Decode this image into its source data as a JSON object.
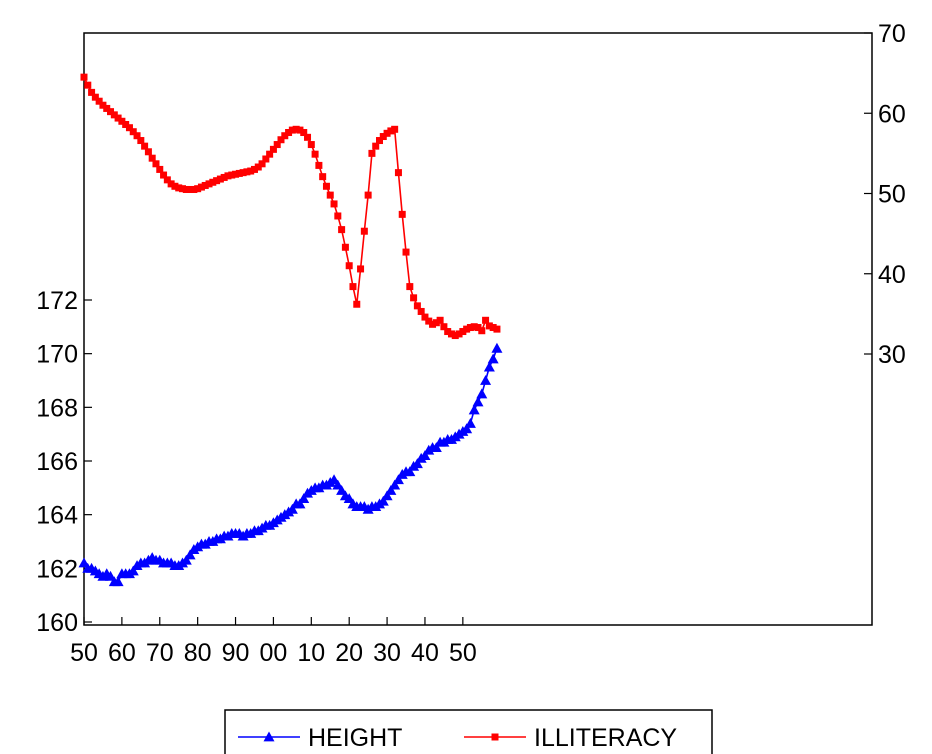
{
  "chart_data": {
    "type": "line",
    "x_range": [
      1850,
      2058
    ],
    "left_axis": {
      "ylim": [
        160,
        172
      ],
      "ticks": [
        160,
        162,
        164,
        166,
        168,
        170,
        172
      ]
    },
    "right_axis": {
      "ylim": [
        30,
        70
      ],
      "ticks": [
        30,
        40,
        50,
        60,
        70
      ]
    },
    "x_ticks": [
      {
        "value": 1850,
        "label": "50"
      },
      {
        "value": 1860,
        "label": "60"
      },
      {
        "value": 1870,
        "label": "70"
      },
      {
        "value": 1880,
        "label": "80"
      },
      {
        "value": 1890,
        "label": "90"
      },
      {
        "value": 1900,
        "label": "00"
      },
      {
        "value": 1910,
        "label": "10"
      },
      {
        "value": 1920,
        "label": "20"
      },
      {
        "value": 1930,
        "label": "30"
      },
      {
        "value": 1940,
        "label": "40"
      },
      {
        "value": 1950,
        "label": "50"
      }
    ],
    "grid": false,
    "legend_position": "bottom",
    "series": [
      {
        "name": "HEIGHT",
        "axis": "left",
        "color": "#0000ff",
        "marker": "triangle",
        "points": [
          [
            1850,
            162.2
          ],
          [
            1851,
            162.0
          ],
          [
            1852,
            162.0
          ],
          [
            1853,
            161.9
          ],
          [
            1854,
            161.8
          ],
          [
            1855,
            161.7
          ],
          [
            1856,
            161.8
          ],
          [
            1857,
            161.7
          ],
          [
            1858,
            161.5
          ],
          [
            1859,
            161.5
          ],
          [
            1860,
            161.8
          ],
          [
            1861,
            161.8
          ],
          [
            1862,
            161.8
          ],
          [
            1863,
            161.9
          ],
          [
            1864,
            162.1
          ],
          [
            1865,
            162.2
          ],
          [
            1866,
            162.2
          ],
          [
            1867,
            162.3
          ],
          [
            1868,
            162.4
          ],
          [
            1869,
            162.3
          ],
          [
            1870,
            162.3
          ],
          [
            1871,
            162.2
          ],
          [
            1872,
            162.2
          ],
          [
            1873,
            162.2
          ],
          [
            1874,
            162.1
          ],
          [
            1875,
            162.1
          ],
          [
            1876,
            162.2
          ],
          [
            1877,
            162.3
          ],
          [
            1878,
            162.5
          ],
          [
            1879,
            162.7
          ],
          [
            1880,
            162.8
          ],
          [
            1881,
            162.9
          ],
          [
            1882,
            162.9
          ],
          [
            1883,
            163.0
          ],
          [
            1884,
            163.0
          ],
          [
            1885,
            163.1
          ],
          [
            1886,
            163.1
          ],
          [
            1887,
            163.2
          ],
          [
            1888,
            163.2
          ],
          [
            1889,
            163.3
          ],
          [
            1890,
            163.3
          ],
          [
            1891,
            163.3
          ],
          [
            1892,
            163.2
          ],
          [
            1893,
            163.3
          ],
          [
            1894,
            163.3
          ],
          [
            1895,
            163.4
          ],
          [
            1896,
            163.4
          ],
          [
            1897,
            163.5
          ],
          [
            1898,
            163.6
          ],
          [
            1899,
            163.6
          ],
          [
            1900,
            163.7
          ],
          [
            1901,
            163.8
          ],
          [
            1902,
            163.9
          ],
          [
            1903,
            164.0
          ],
          [
            1904,
            164.1
          ],
          [
            1905,
            164.2
          ],
          [
            1906,
            164.4
          ],
          [
            1907,
            164.4
          ],
          [
            1908,
            164.6
          ],
          [
            1909,
            164.8
          ],
          [
            1910,
            164.9
          ],
          [
            1911,
            165.0
          ],
          [
            1912,
            165.0
          ],
          [
            1913,
            165.1
          ],
          [
            1914,
            165.1
          ],
          [
            1915,
            165.2
          ],
          [
            1916,
            165.3
          ],
          [
            1917,
            165.1
          ],
          [
            1918,
            164.9
          ],
          [
            1919,
            164.7
          ],
          [
            1920,
            164.6
          ],
          [
            1921,
            164.4
          ],
          [
            1922,
            164.3
          ],
          [
            1923,
            164.3
          ],
          [
            1924,
            164.3
          ],
          [
            1925,
            164.2
          ],
          [
            1926,
            164.3
          ],
          [
            1927,
            164.3
          ],
          [
            1928,
            164.4
          ],
          [
            1929,
            164.5
          ],
          [
            1930,
            164.7
          ],
          [
            1931,
            164.9
          ],
          [
            1932,
            165.1
          ],
          [
            1933,
            165.3
          ],
          [
            1934,
            165.5
          ],
          [
            1935,
            165.6
          ],
          [
            1936,
            165.6
          ],
          [
            1937,
            165.8
          ],
          [
            1938,
            165.9
          ],
          [
            1939,
            166.1
          ],
          [
            1940,
            166.2
          ],
          [
            1941,
            166.4
          ],
          [
            1942,
            166.5
          ],
          [
            1943,
            166.5
          ],
          [
            1944,
            166.7
          ],
          [
            1945,
            166.7
          ],
          [
            1946,
            166.8
          ],
          [
            1947,
            166.8
          ],
          [
            1948,
            166.9
          ],
          [
            1949,
            167.0
          ],
          [
            1950,
            167.1
          ],
          [
            1951,
            167.2
          ],
          [
            1952,
            167.4
          ],
          [
            1953,
            167.9
          ],
          [
            1954,
            168.2
          ],
          [
            1955,
            168.5
          ],
          [
            1956,
            169.0
          ],
          [
            1957,
            169.5
          ],
          [
            1958,
            169.8
          ],
          [
            1959,
            170.2
          ]
        ]
      },
      {
        "name": "ILLITERACY",
        "axis": "right",
        "color": "#ff0000",
        "marker": "square",
        "points": [
          [
            1850,
            64.5
          ],
          [
            1851,
            63.5
          ],
          [
            1852,
            62.6
          ],
          [
            1853,
            62.0
          ],
          [
            1854,
            61.5
          ],
          [
            1855,
            61.0
          ],
          [
            1856,
            60.6
          ],
          [
            1857,
            60.2
          ],
          [
            1858,
            59.8
          ],
          [
            1859,
            59.4
          ],
          [
            1860,
            59.0
          ],
          [
            1861,
            58.6
          ],
          [
            1862,
            58.2
          ],
          [
            1863,
            57.7
          ],
          [
            1864,
            57.2
          ],
          [
            1865,
            56.6
          ],
          [
            1866,
            55.9
          ],
          [
            1867,
            55.2
          ],
          [
            1868,
            54.4
          ],
          [
            1869,
            53.7
          ],
          [
            1870,
            53.0
          ],
          [
            1871,
            52.3
          ],
          [
            1872,
            51.7
          ],
          [
            1873,
            51.2
          ],
          [
            1874,
            50.9
          ],
          [
            1875,
            50.7
          ],
          [
            1876,
            50.6
          ],
          [
            1877,
            50.5
          ],
          [
            1878,
            50.5
          ],
          [
            1879,
            50.5
          ],
          [
            1880,
            50.6
          ],
          [
            1881,
            50.8
          ],
          [
            1882,
            51.0
          ],
          [
            1883,
            51.2
          ],
          [
            1884,
            51.4
          ],
          [
            1885,
            51.6
          ],
          [
            1886,
            51.8
          ],
          [
            1887,
            52.0
          ],
          [
            1888,
            52.2
          ],
          [
            1889,
            52.3
          ],
          [
            1890,
            52.4
          ],
          [
            1891,
            52.5
          ],
          [
            1892,
            52.6
          ],
          [
            1893,
            52.7
          ],
          [
            1894,
            52.8
          ],
          [
            1895,
            53.0
          ],
          [
            1896,
            53.3
          ],
          [
            1897,
            53.7
          ],
          [
            1898,
            54.3
          ],
          [
            1899,
            54.9
          ],
          [
            1900,
            55.5
          ],
          [
            1901,
            56.1
          ],
          [
            1902,
            56.7
          ],
          [
            1903,
            57.2
          ],
          [
            1904,
            57.6
          ],
          [
            1905,
            57.9
          ],
          [
            1906,
            58.0
          ],
          [
            1907,
            57.9
          ],
          [
            1908,
            57.6
          ],
          [
            1909,
            57.0
          ],
          [
            1910,
            56.1
          ],
          [
            1911,
            54.9
          ],
          [
            1912,
            53.5
          ],
          [
            1913,
            52.1
          ],
          [
            1914,
            50.9
          ],
          [
            1915,
            49.8
          ],
          [
            1916,
            48.7
          ],
          [
            1917,
            47.2
          ],
          [
            1918,
            45.5
          ],
          [
            1919,
            43.3
          ],
          [
            1920,
            41.0
          ],
          [
            1921,
            38.4
          ],
          [
            1922,
            36.2
          ],
          [
            1923,
            40.6
          ],
          [
            1924,
            45.3
          ],
          [
            1925,
            49.8
          ],
          [
            1926,
            55.0
          ],
          [
            1927,
            55.9
          ],
          [
            1928,
            56.6
          ],
          [
            1929,
            57.1
          ],
          [
            1930,
            57.5
          ],
          [
            1931,
            57.8
          ],
          [
            1932,
            58.0
          ],
          [
            1933,
            52.6
          ],
          [
            1934,
            47.4
          ],
          [
            1935,
            42.7
          ],
          [
            1936,
            38.4
          ],
          [
            1937,
            37.0
          ],
          [
            1938,
            36.0
          ],
          [
            1939,
            35.3
          ],
          [
            1940,
            34.6
          ],
          [
            1941,
            34.1
          ],
          [
            1942,
            33.7
          ],
          [
            1943,
            33.9
          ],
          [
            1944,
            34.2
          ],
          [
            1945,
            33.4
          ],
          [
            1946,
            32.8
          ],
          [
            1947,
            32.5
          ],
          [
            1948,
            32.3
          ],
          [
            1949,
            32.5
          ],
          [
            1950,
            32.8
          ],
          [
            1951,
            33.1
          ],
          [
            1952,
            33.3
          ],
          [
            1953,
            33.4
          ],
          [
            1954,
            33.3
          ],
          [
            1955,
            32.9
          ],
          [
            1956,
            34.2
          ],
          [
            1957,
            33.5
          ],
          [
            1958,
            33.3
          ],
          [
            1959,
            33.1
          ]
        ]
      }
    ]
  }
}
